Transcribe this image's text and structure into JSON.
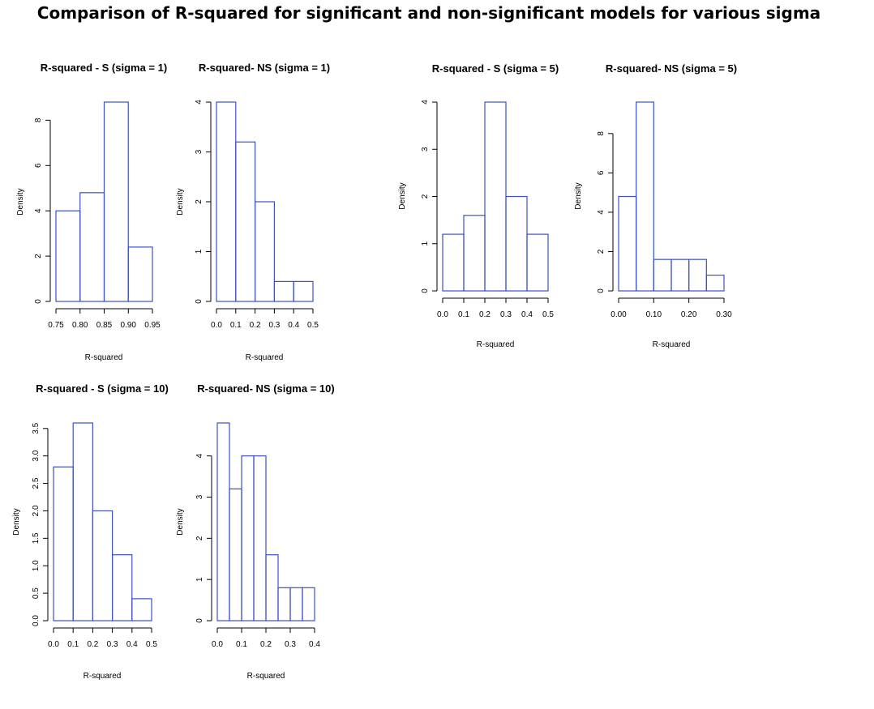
{
  "title": "Comparison of R-squared for significant and non-significant models for various sigma",
  "colors": {
    "bar": "#3b4fd0",
    "axis": "#000000",
    "background": "#ffffff"
  },
  "chart_data": [
    {
      "type": "bar",
      "title": "R-squared - S (sigma = 1)",
      "xlabel": "R-squared",
      "ylabel": "Density",
      "bins": [
        [
          0.75,
          0.8
        ],
        [
          0.8,
          0.85
        ],
        [
          0.85,
          0.9
        ],
        [
          0.9,
          0.95
        ]
      ],
      "values": [
        4.0,
        4.8,
        8.8,
        2.4
      ],
      "xticks": [
        0.75,
        0.8,
        0.85,
        0.9,
        0.95
      ],
      "xtick_labels": [
        "0.75",
        "0.80",
        "0.85",
        "0.90",
        "0.95"
      ],
      "yticks": [
        0,
        2,
        4,
        6,
        8
      ],
      "ytick_labels": [
        "0",
        "2",
        "4",
        "6",
        "8"
      ],
      "xlim": [
        0.75,
        0.95
      ],
      "ylim": [
        0,
        8.8
      ]
    },
    {
      "type": "bar",
      "title": "R-squared- NS (sigma = 1)",
      "xlabel": "R-squared",
      "ylabel": "Density",
      "bins": [
        [
          0,
          0.1
        ],
        [
          0.1,
          0.2
        ],
        [
          0.2,
          0.3
        ],
        [
          0.3,
          0.4
        ],
        [
          0.4,
          0.5
        ]
      ],
      "values": [
        4.0,
        3.2,
        2.0,
        0.4,
        0.4
      ],
      "xticks": [
        0,
        0.1,
        0.2,
        0.3,
        0.4,
        0.5
      ],
      "xtick_labels": [
        "0.0",
        "0.1",
        "0.2",
        "0.3",
        "0.4",
        "0.5"
      ],
      "yticks": [
        0,
        1,
        2,
        3,
        4
      ],
      "ytick_labels": [
        "0",
        "1",
        "2",
        "3",
        "4"
      ],
      "xlim": [
        0,
        0.5
      ],
      "ylim": [
        0,
        4
      ]
    },
    {
      "type": "bar",
      "title": "R-squared - S (sigma = 5)",
      "xlabel": "R-squared",
      "ylabel": "Density",
      "bins": [
        [
          0,
          0.1
        ],
        [
          0.1,
          0.2
        ],
        [
          0.2,
          0.3
        ],
        [
          0.3,
          0.4
        ],
        [
          0.4,
          0.5
        ]
      ],
      "values": [
        1.2,
        1.6,
        4.0,
        2.0,
        1.2
      ],
      "xticks": [
        0,
        0.1,
        0.2,
        0.3,
        0.4,
        0.5
      ],
      "xtick_labels": [
        "0.0",
        "0.1",
        "0.2",
        "0.3",
        "0.4",
        "0.5"
      ],
      "yticks": [
        0,
        1,
        2,
        3,
        4
      ],
      "ytick_labels": [
        "0",
        "1",
        "2",
        "3",
        "4"
      ],
      "xlim": [
        0,
        0.5
      ],
      "ylim": [
        0,
        4
      ]
    },
    {
      "type": "bar",
      "title": "R-squared- NS (sigma = 5)",
      "xlabel": "R-squared",
      "ylabel": "Density",
      "bins": [
        [
          0,
          0.05
        ],
        [
          0.05,
          0.1
        ],
        [
          0.1,
          0.15
        ],
        [
          0.15,
          0.2
        ],
        [
          0.2,
          0.25
        ],
        [
          0.25,
          0.3
        ]
      ],
      "values": [
        4.8,
        9.6,
        1.6,
        1.6,
        1.6,
        0.8
      ],
      "xticks": [
        0,
        0.1,
        0.2,
        0.3
      ],
      "xtick_labels": [
        "0.00",
        "0.10",
        "0.20",
        "0.30"
      ],
      "yticks": [
        0,
        2,
        4,
        6,
        8
      ],
      "ytick_labels": [
        "0",
        "2",
        "4",
        "6",
        "8"
      ],
      "xlim": [
        0,
        0.3
      ],
      "ylim": [
        0,
        9.6
      ]
    },
    {
      "type": "bar",
      "title": "R-squared - S (sigma = 10)",
      "xlabel": "R-squared",
      "ylabel": "Density",
      "bins": [
        [
          0,
          0.1
        ],
        [
          0.1,
          0.2
        ],
        [
          0.2,
          0.3
        ],
        [
          0.3,
          0.4
        ],
        [
          0.4,
          0.5
        ]
      ],
      "values": [
        2.8,
        3.6,
        2.0,
        1.2,
        0.4
      ],
      "xticks": [
        0,
        0.1,
        0.2,
        0.3,
        0.4,
        0.5
      ],
      "xtick_labels": [
        "0.0",
        "0.1",
        "0.2",
        "0.3",
        "0.4",
        "0.5"
      ],
      "yticks": [
        0,
        0.5,
        1,
        1.5,
        2,
        2.5,
        3,
        3.5
      ],
      "ytick_labels": [
        "0.0",
        "0.5",
        "1.0",
        "1.5",
        "2.0",
        "2.5",
        "3.0",
        "3.5"
      ],
      "xlim": [
        0,
        0.5
      ],
      "ylim": [
        0,
        3.6
      ]
    },
    {
      "type": "bar",
      "title": "R-squared- NS (sigma = 10)",
      "xlabel": "R-squared",
      "ylabel": "Density",
      "bins": [
        [
          0,
          0.05
        ],
        [
          0.05,
          0.1
        ],
        [
          0.1,
          0.15
        ],
        [
          0.15,
          0.2
        ],
        [
          0.2,
          0.25
        ],
        [
          0.25,
          0.3
        ],
        [
          0.3,
          0.35
        ],
        [
          0.35,
          0.4
        ]
      ],
      "values": [
        4.8,
        3.2,
        4.0,
        4.0,
        1.6,
        0.8,
        0.8,
        0.8
      ],
      "xticks": [
        0,
        0.1,
        0.2,
        0.3,
        0.4
      ],
      "xtick_labels": [
        "0.0",
        "0.1",
        "0.2",
        "0.3",
        "0.4"
      ],
      "yticks": [
        0,
        1,
        2,
        3,
        4
      ],
      "ytick_labels": [
        "0",
        "1",
        "2",
        "3",
        "4"
      ],
      "xlim": [
        0,
        0.4
      ],
      "ylim": [
        0,
        4.8
      ]
    }
  ]
}
